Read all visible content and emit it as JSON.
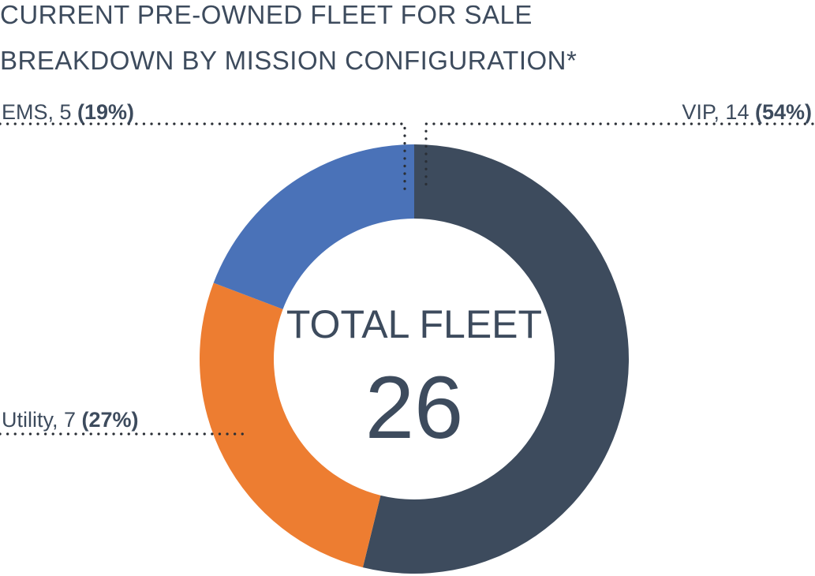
{
  "chart_data": {
    "type": "pie",
    "variant": "donut",
    "title": "CURRENT PRE-OWNED FLEET FOR SALE",
    "subtitle": "BREAKDOWN BY MISSION CONFIGURATION*",
    "center_label": "TOTAL FLEET",
    "center_value": "26",
    "total": 26,
    "slices": [
      {
        "label": "VIP",
        "value": 14,
        "percent": "54%",
        "color": "#3d4b5d",
        "callout_text": "VIP, 14 ",
        "callout_pct": "(54%)"
      },
      {
        "label": "Utility",
        "value": 7,
        "percent": "27%",
        "color": "#ed7d31",
        "callout_text": "Utility, 7 ",
        "callout_pct": "(27%)"
      },
      {
        "label": "EMS",
        "value": 5,
        "percent": "19%",
        "color": "#4a72b8",
        "callout_text": "EMS, 5 ",
        "callout_pct": "(19%)"
      }
    ]
  }
}
